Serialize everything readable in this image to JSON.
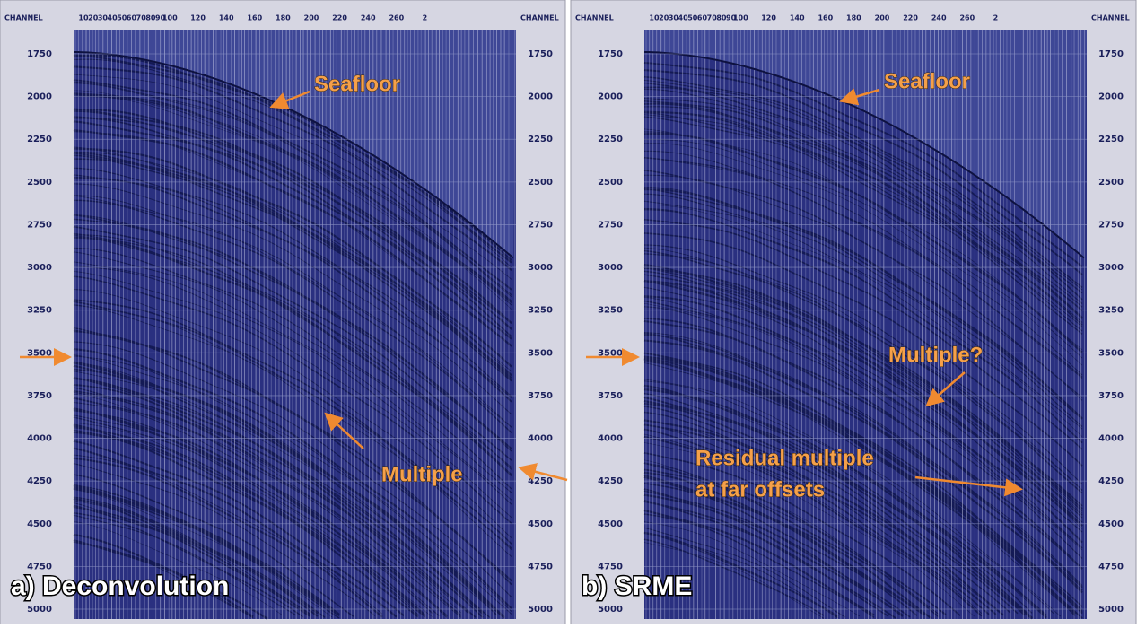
{
  "panels": [
    {
      "label": "a) Deconvolution",
      "channel_label": "CHANNEL",
      "channel_ticks": [
        "10",
        "20",
        "30",
        "40",
        "50",
        "60",
        "70",
        "80",
        "90",
        "100",
        "120",
        "140",
        "160",
        "180",
        "200",
        "220",
        "240",
        "260",
        "2"
      ],
      "time_ticks": [
        1750,
        2000,
        2250,
        2500,
        2750,
        3000,
        3250,
        3500,
        3750,
        4000,
        4250,
        4500,
        4750,
        5000
      ],
      "annotations": [
        [
          "Seafloor"
        ],
        [
          "Multiple"
        ]
      ]
    },
    {
      "label": "b) SRME",
      "channel_label": "CHANNEL",
      "channel_ticks": [
        "10",
        "20",
        "30",
        "40",
        "50",
        "60",
        "70",
        "80",
        "90",
        "100",
        "120",
        "140",
        "160",
        "180",
        "200",
        "220",
        "240",
        "260",
        "2"
      ],
      "time_ticks": [
        1750,
        2000,
        2250,
        2500,
        2750,
        3000,
        3250,
        3500,
        3750,
        4000,
        4250,
        4500,
        4750,
        5000
      ],
      "annotations": [
        [
          "Seafloor"
        ],
        [
          "Multiple?"
        ],
        [
          "Residual multiple",
          "at far offsets"
        ]
      ]
    }
  ]
}
